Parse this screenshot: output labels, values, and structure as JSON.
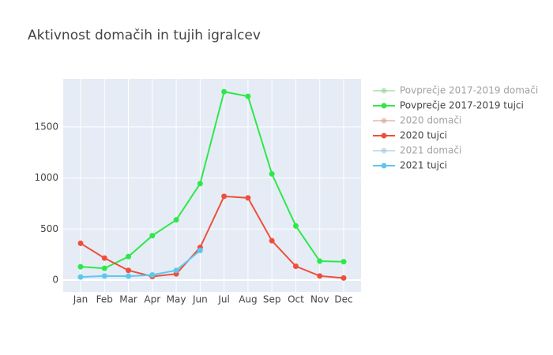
{
  "chart_data": {
    "type": "line",
    "title": "Aktivnost domačih in tujih igralcev",
    "categories": [
      "Jan",
      "Feb",
      "Mar",
      "Apr",
      "May",
      "Jun",
      "Jul",
      "Aug",
      "Sep",
      "Oct",
      "Nov",
      "Dec"
    ],
    "series": [
      {
        "name": "Povprečje 2017-2019 domači",
        "color": "#7fd08a",
        "visible": "legendonly",
        "values": [
          null,
          null,
          null,
          null,
          null,
          null,
          null,
          null,
          null,
          null,
          null,
          null
        ]
      },
      {
        "name": "Povprečje 2017-2019 tujci",
        "color": "#2ee84a",
        "values": [
          130,
          115,
          230,
          435,
          590,
          945,
          1845,
          1800,
          1040,
          530,
          185,
          180
        ]
      },
      {
        "name": "2020 domači",
        "color": "#d9958a",
        "visible": "legendonly",
        "values": [
          null,
          null,
          null,
          null,
          null,
          null,
          null,
          null,
          null,
          null,
          null,
          null
        ]
      },
      {
        "name": "2020 tujci",
        "color": "#ef4f3b",
        "values": [
          360,
          215,
          95,
          35,
          60,
          320,
          820,
          805,
          385,
          135,
          40,
          20
        ]
      },
      {
        "name": "2021 domači",
        "color": "#8fc3d3",
        "visible": "legendonly",
        "values": [
          null,
          null,
          null,
          null,
          null,
          null,
          null,
          null,
          null,
          null,
          null,
          null
        ]
      },
      {
        "name": "2021 tujci",
        "color": "#5cc8ee",
        "values": [
          30,
          40,
          38,
          50,
          95,
          290,
          null,
          null,
          null,
          null,
          null,
          null
        ]
      }
    ],
    "ylim": [
      -116,
      1971
    ],
    "yticks": [
      0,
      500,
      1000,
      1500
    ],
    "grid": true,
    "legend": "right"
  }
}
